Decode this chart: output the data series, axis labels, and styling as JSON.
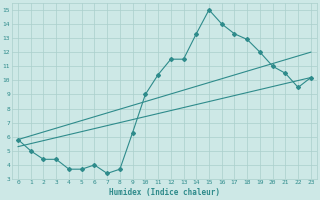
{
  "line1_x": [
    0,
    1,
    2,
    3,
    4,
    5,
    6,
    7,
    8,
    9,
    10,
    11,
    12,
    13,
    14,
    15,
    16,
    17,
    18,
    19,
    20,
    21,
    22,
    23
  ],
  "line1_y": [
    5.8,
    5.0,
    4.4,
    4.4,
    3.7,
    3.7,
    4.0,
    3.4,
    3.7,
    6.3,
    9.0,
    10.4,
    11.5,
    11.5,
    13.3,
    15.0,
    14.0,
    13.3,
    12.9,
    12.0,
    11.0,
    10.5,
    9.5,
    10.2
  ],
  "line2_x": [
    0,
    23
  ],
  "line2_y": [
    5.8,
    12.0
  ],
  "line3_x": [
    0,
    23
  ],
  "line3_y": [
    5.3,
    10.2
  ],
  "line_color": "#2e8b8b",
  "bg_color": "#cde8e6",
  "grid_color": "#aacfcc",
  "xlabel": "Humidex (Indice chaleur)",
  "xlim": [
    -0.5,
    23.5
  ],
  "ylim": [
    3,
    15.5
  ],
  "xticks": [
    0,
    1,
    2,
    3,
    4,
    5,
    6,
    7,
    8,
    9,
    10,
    11,
    12,
    13,
    14,
    15,
    16,
    17,
    18,
    19,
    20,
    21,
    22,
    23
  ],
  "yticks": [
    3,
    4,
    5,
    6,
    7,
    8,
    9,
    10,
    11,
    12,
    13,
    14,
    15
  ],
  "marker": "D",
  "markersize": 2.0,
  "linewidth": 0.8
}
